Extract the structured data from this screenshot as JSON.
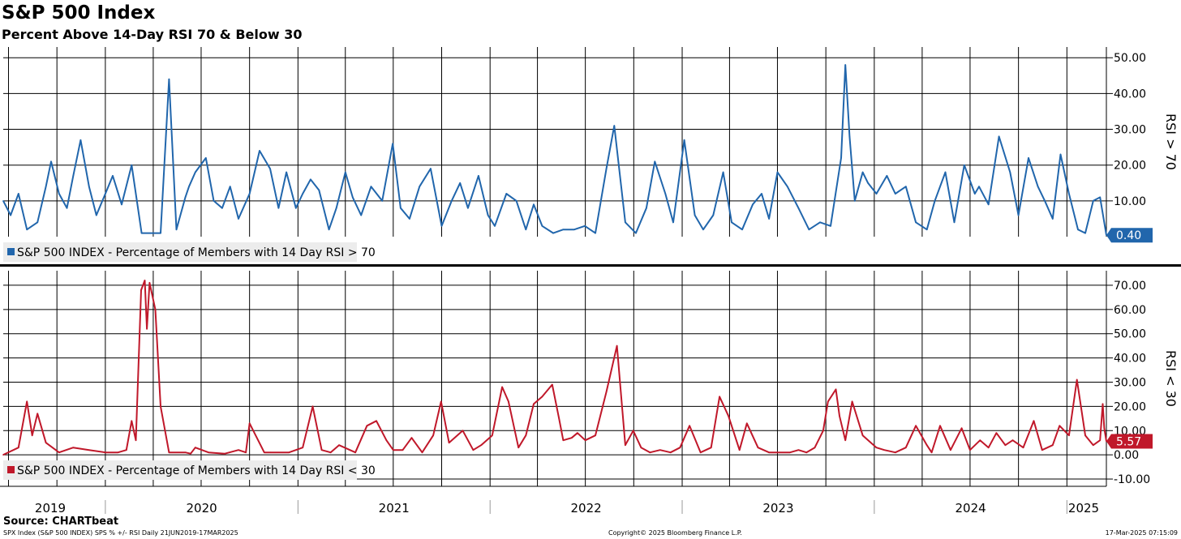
{
  "title": "S&P 500 Index",
  "subtitle": "Percent Above 14-Day RSI 70 & Below 30",
  "source": "Source: CHARTbeat",
  "footer_left": "SPX Index (S&P 500 INDEX) SPS % +/- RSI  Daily 21JUN2019-17MAR2025",
  "footer_mid": "Copyright© 2025 Bloomberg Finance L.P.",
  "footer_right": "17-Mar-2025 07:15:09",
  "colors": {
    "blue": "#2166ac",
    "red": "#c0182a"
  },
  "chart_data": [
    {
      "type": "line",
      "title": "",
      "ylabel": "RSI > 70",
      "ylim": [
        0,
        53
      ],
      "yticks": [
        "10.00",
        "20.00",
        "30.00",
        "40.00",
        "50.00"
      ],
      "ytick_values": [
        10,
        20,
        30,
        40,
        50
      ],
      "xlim": [
        "2019-06-21",
        "2025-03-17"
      ],
      "grid": true,
      "legend_position": "bottom-left",
      "last_value_label": "0.40",
      "series": [
        {
          "name": "S&P 500 INDEX - Percentage of Members with 14 Day RSI > 70",
          "color": "#2166ac",
          "x": [
            "2019-06-21",
            "2019-07-05",
            "2019-07-20",
            "2019-08-05",
            "2019-08-25",
            "2019-09-10",
            "2019-09-20",
            "2019-10-05",
            "2019-10-20",
            "2019-11-01",
            "2019-11-15",
            "2019-12-01",
            "2019-12-15",
            "2020-01-01",
            "2020-01-15",
            "2020-02-01",
            "2020-02-20",
            "2020-03-10",
            "2020-04-01",
            "2020-04-15",
            "2020-05-01",
            "2020-05-15",
            "2020-06-01",
            "2020-06-08",
            "2020-06-20",
            "2020-07-10",
            "2020-07-25",
            "2020-08-10",
            "2020-08-25",
            "2020-09-10",
            "2020-10-01",
            "2020-10-20",
            "2020-11-09",
            "2020-11-25",
            "2020-12-10",
            "2020-12-28",
            "2021-01-10",
            "2021-01-25",
            "2021-02-10",
            "2021-03-01",
            "2021-03-15",
            "2021-04-01",
            "2021-04-15",
            "2021-05-01",
            "2021-05-20",
            "2021-06-10",
            "2021-06-30",
            "2021-07-15",
            "2021-08-01",
            "2021-08-20",
            "2021-09-10",
            "2021-10-01",
            "2021-10-20",
            "2021-11-05",
            "2021-11-20",
            "2021-12-10",
            "2021-12-28",
            "2022-01-10",
            "2022-02-01",
            "2022-02-20",
            "2022-03-10",
            "2022-03-25",
            "2022-04-10",
            "2022-05-01",
            "2022-05-20",
            "2022-06-10",
            "2022-06-30",
            "2022-07-20",
            "2022-08-10",
            "2022-08-25",
            "2022-09-15",
            "2022-10-05",
            "2022-10-25",
            "2022-11-10",
            "2022-11-30",
            "2022-12-15",
            "2023-01-05",
            "2023-01-25",
            "2023-02-10",
            "2023-03-01",
            "2023-03-20",
            "2023-04-05",
            "2023-04-25",
            "2023-05-15",
            "2023-06-01",
            "2023-06-15",
            "2023-07-01",
            "2023-07-20",
            "2023-08-10",
            "2023-08-30",
            "2023-09-20",
            "2023-10-10",
            "2023-10-30",
            "2023-11-07",
            "2023-11-15",
            "2023-11-25",
            "2023-12-10",
            "2023-12-20",
            "2024-01-05",
            "2024-01-25",
            "2024-02-10",
            "2024-03-01",
            "2024-03-20",
            "2024-04-10",
            "2024-04-25",
            "2024-05-15",
            "2024-06-01",
            "2024-06-20",
            "2024-07-10",
            "2024-07-18",
            "2024-08-05",
            "2024-08-25",
            "2024-09-15",
            "2024-10-01",
            "2024-10-20",
            "2024-11-07",
            "2024-11-20",
            "2024-12-05",
            "2024-12-20",
            "2025-01-05",
            "2025-01-22",
            "2025-02-05",
            "2025-02-20",
            "2025-03-05",
            "2025-03-17"
          ],
          "values": [
            10,
            6,
            12,
            2,
            4,
            14,
            21,
            12,
            8,
            17,
            27,
            14,
            6,
            12,
            17,
            9,
            20,
            1,
            1,
            1,
            44,
            2,
            11,
            14,
            18,
            22,
            10,
            8,
            14,
            5,
            12,
            24,
            19,
            8,
            18,
            8,
            12,
            16,
            13,
            2,
            8,
            18,
            11,
            6,
            14,
            10,
            26,
            8,
            5,
            14,
            19,
            3,
            10,
            15,
            8,
            17,
            6,
            3,
            12,
            10,
            2,
            9,
            3,
            1,
            2,
            2,
            3,
            1,
            19,
            31,
            4,
            1,
            8,
            21,
            12,
            4,
            27,
            6,
            2,
            6,
            18,
            4,
            2,
            9,
            12,
            5,
            18,
            14,
            8,
            2,
            4,
            3,
            22,
            48,
            28,
            10,
            18,
            15,
            12,
            17,
            12,
            14,
            4,
            2,
            10,
            18,
            4,
            20,
            12,
            14,
            9,
            28,
            18,
            6,
            22,
            14,
            10,
            5,
            23,
            12,
            2,
            1,
            10,
            11,
            0.4
          ]
        }
      ]
    },
    {
      "type": "line",
      "title": "",
      "ylabel": "RSI < 30",
      "ylim": [
        -13,
        76
      ],
      "yticks": [
        "-10.00",
        "0.00",
        "10.00",
        "20.00",
        "30.00",
        "40.00",
        "50.00",
        "60.00",
        "70.00"
      ],
      "ytick_values": [
        -10,
        0,
        10,
        20,
        30,
        40,
        50,
        60,
        70
      ],
      "xlim": [
        "2019-06-21",
        "2025-03-17"
      ],
      "x_tick_labels": [
        "2019",
        "2020",
        "2021",
        "2022",
        "2023",
        "2024",
        "2025"
      ],
      "grid": true,
      "legend_position": "bottom-left",
      "last_value_label": "5.57",
      "series": [
        {
          "name": "S&P 500 INDEX - Percentage of Members with 14 Day RSI < 30",
          "color": "#c0182a",
          "x": [
            "2019-06-21",
            "2019-07-20",
            "2019-08-05",
            "2019-08-15",
            "2019-08-25",
            "2019-09-10",
            "2019-10-05",
            "2019-11-01",
            "2019-12-01",
            "2020-01-01",
            "2020-01-25",
            "2020-02-10",
            "2020-02-20",
            "2020-02-28",
            "2020-03-09",
            "2020-03-16",
            "2020-03-20",
            "2020-03-25",
            "2020-04-05",
            "2020-04-15",
            "2020-05-01",
            "2020-06-01",
            "2020-06-11",
            "2020-06-20",
            "2020-07-15",
            "2020-08-15",
            "2020-09-10",
            "2020-09-24",
            "2020-10-01",
            "2020-10-29",
            "2020-11-10",
            "2020-12-15",
            "2021-01-10",
            "2021-01-29",
            "2021-02-15",
            "2021-03-04",
            "2021-03-20",
            "2021-04-20",
            "2021-05-12",
            "2021-05-30",
            "2021-06-18",
            "2021-07-01",
            "2021-07-19",
            "2021-08-05",
            "2021-08-25",
            "2021-09-15",
            "2021-09-30",
            "2021-10-15",
            "2021-11-10",
            "2021-11-30",
            "2021-12-15",
            "2022-01-05",
            "2022-01-24",
            "2022-02-05",
            "2022-02-24",
            "2022-03-10",
            "2022-03-25",
            "2022-04-10",
            "2022-04-29",
            "2022-05-12",
            "2022-05-20",
            "2022-06-05",
            "2022-06-16",
            "2022-07-01",
            "2022-07-20",
            "2022-08-10",
            "2022-08-30",
            "2022-09-15",
            "2022-09-30",
            "2022-10-15",
            "2022-11-01",
            "2022-11-20",
            "2022-12-10",
            "2022-12-28",
            "2023-01-15",
            "2023-02-05",
            "2023-02-25",
            "2023-03-13",
            "2023-03-30",
            "2023-04-20",
            "2023-05-04",
            "2023-05-25",
            "2023-06-15",
            "2023-07-05",
            "2023-07-25",
            "2023-08-10",
            "2023-08-25",
            "2023-09-10",
            "2023-09-26",
            "2023-10-05",
            "2023-10-20",
            "2023-10-27",
            "2023-11-07",
            "2023-11-20",
            "2023-12-10",
            "2024-01-05",
            "2024-01-20",
            "2024-02-10",
            "2024-03-01",
            "2024-03-20",
            "2024-04-10",
            "2024-04-19",
            "2024-05-05",
            "2024-05-25",
            "2024-06-15",
            "2024-07-01",
            "2024-07-20",
            "2024-08-05",
            "2024-08-20",
            "2024-09-06",
            "2024-09-20",
            "2024-10-10",
            "2024-10-30",
            "2024-11-15",
            "2024-12-05",
            "2024-12-18",
            "2025-01-05",
            "2025-01-20",
            "2025-02-05",
            "2025-02-20",
            "2025-03-05",
            "2025-03-10",
            "2025-03-13",
            "2025-03-17"
          ],
          "values": [
            0,
            3,
            22,
            8,
            17,
            5,
            1,
            3,
            2,
            1,
            1,
            2,
            14,
            6,
            68,
            72,
            52,
            71,
            60,
            20,
            1,
            1,
            0.5,
            3,
            1,
            0.5,
            2,
            1,
            13,
            1,
            1,
            1,
            3,
            20,
            2,
            1,
            4,
            1,
            12,
            14,
            6,
            2,
            2,
            7,
            1,
            8,
            22,
            5,
            10,
            2,
            4,
            8,
            28,
            22,
            3,
            8,
            21,
            24,
            29,
            15,
            6,
            7,
            9,
            6,
            8,
            26,
            45,
            4,
            10,
            3,
            1,
            2,
            1,
            3,
            12,
            1,
            3,
            24,
            16,
            2,
            13,
            3,
            1,
            1,
            1,
            2,
            1,
            3,
            10,
            22,
            27,
            16,
            6,
            22,
            8,
            3,
            2,
            1,
            3,
            12,
            4,
            1,
            12,
            2,
            11,
            2,
            6,
            3,
            9,
            4,
            6,
            3,
            14,
            2,
            4,
            12,
            8,
            31,
            8,
            4,
            6,
            21,
            11,
            5.57
          ]
        }
      ]
    }
  ]
}
